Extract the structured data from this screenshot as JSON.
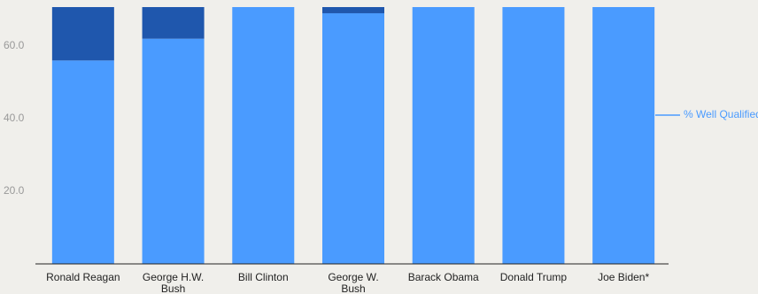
{
  "chart_data": {
    "type": "bar",
    "stacked": true,
    "categories": [
      "Ronald Reagan",
      "George H.W. Bush",
      "Bill Clinton",
      "George W. Bush",
      "Barack Obama",
      "Donald Trump",
      "Joe Biden*"
    ],
    "series": [
      {
        "name": "% Well Qualified",
        "color": "#4a9bff",
        "values": [
          56,
          62,
          75,
          69,
          75,
          75,
          75
        ]
      },
      {
        "color": "#1f57ad",
        "values": [
          15,
          9,
          0,
          2,
          0,
          0,
          0
        ]
      }
    ],
    "ylim": [
      0,
      70.7
    ],
    "yticks": [
      {
        "value": 20,
        "label": "20.0"
      },
      {
        "value": 40,
        "label": "40.0"
      },
      {
        "value": 60,
        "label": "60.0"
      }
    ],
    "legend": "right"
  }
}
